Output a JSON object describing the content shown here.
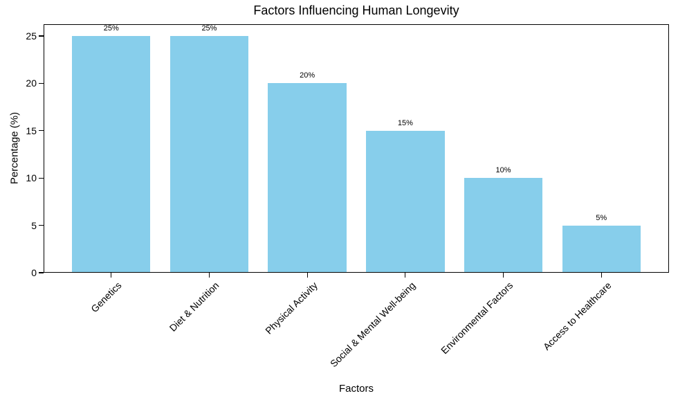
{
  "figure": {
    "background_color": "#ffffff",
    "text_color": "#000000"
  },
  "chart_data": {
    "type": "bar",
    "title": "Factors Influencing Human Longevity",
    "xlabel": "Factors",
    "ylabel": "Percentage (%)",
    "categories": [
      "Genetics",
      "Diet & Nutrition",
      "Physical Activity",
      "Social & Mental Well-being",
      "Environmental Factors",
      "Access to Healthcare"
    ],
    "values": [
      25,
      25,
      20,
      15,
      10,
      5
    ],
    "bar_labels": [
      "25%",
      "25%",
      "20%",
      "15%",
      "10%",
      "5%"
    ],
    "bar_color": "#87CEEB",
    "yticks": [
      0,
      5,
      10,
      15,
      20,
      25
    ],
    "ytick_labels": [
      "0",
      "5",
      "10",
      "15",
      "20",
      "25"
    ],
    "ylim": [
      0,
      26.25
    ],
    "grid": false,
    "legend": null,
    "x_tick_rotation_deg": 45
  }
}
